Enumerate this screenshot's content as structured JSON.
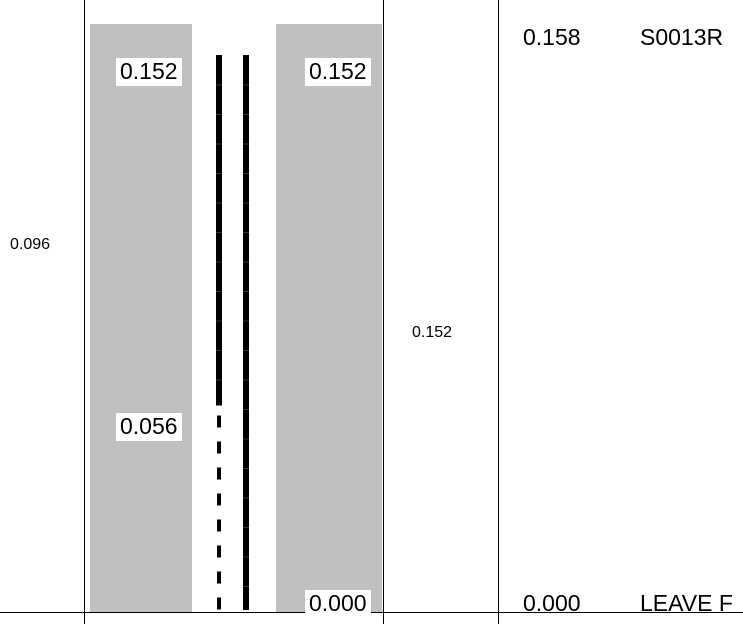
{
  "left_offset_label": "0.096",
  "panel_left_labels": {
    "top": "0.152",
    "mid": "0.056"
  },
  "panel_right_labels": {
    "top": "0.152",
    "bottom": "0.000"
  },
  "center_length_label": "0.152",
  "right_column": {
    "top_value": "0.158",
    "top_code": "S0013R",
    "bottom_value": "0.000",
    "bottom_text": "LEAVE F"
  },
  "colors": {
    "panel": "#c0c0c0",
    "line": "#000000",
    "background": "#ffffff"
  },
  "line_segments": [
    {
      "name": "left-line",
      "solid_from": 0.152,
      "solid_to": 0.056,
      "dashed_from": 0.056,
      "dashed_to": 0.0
    },
    {
      "name": "right-line",
      "solid_from": 0.152,
      "solid_to": 0.0
    }
  ]
}
